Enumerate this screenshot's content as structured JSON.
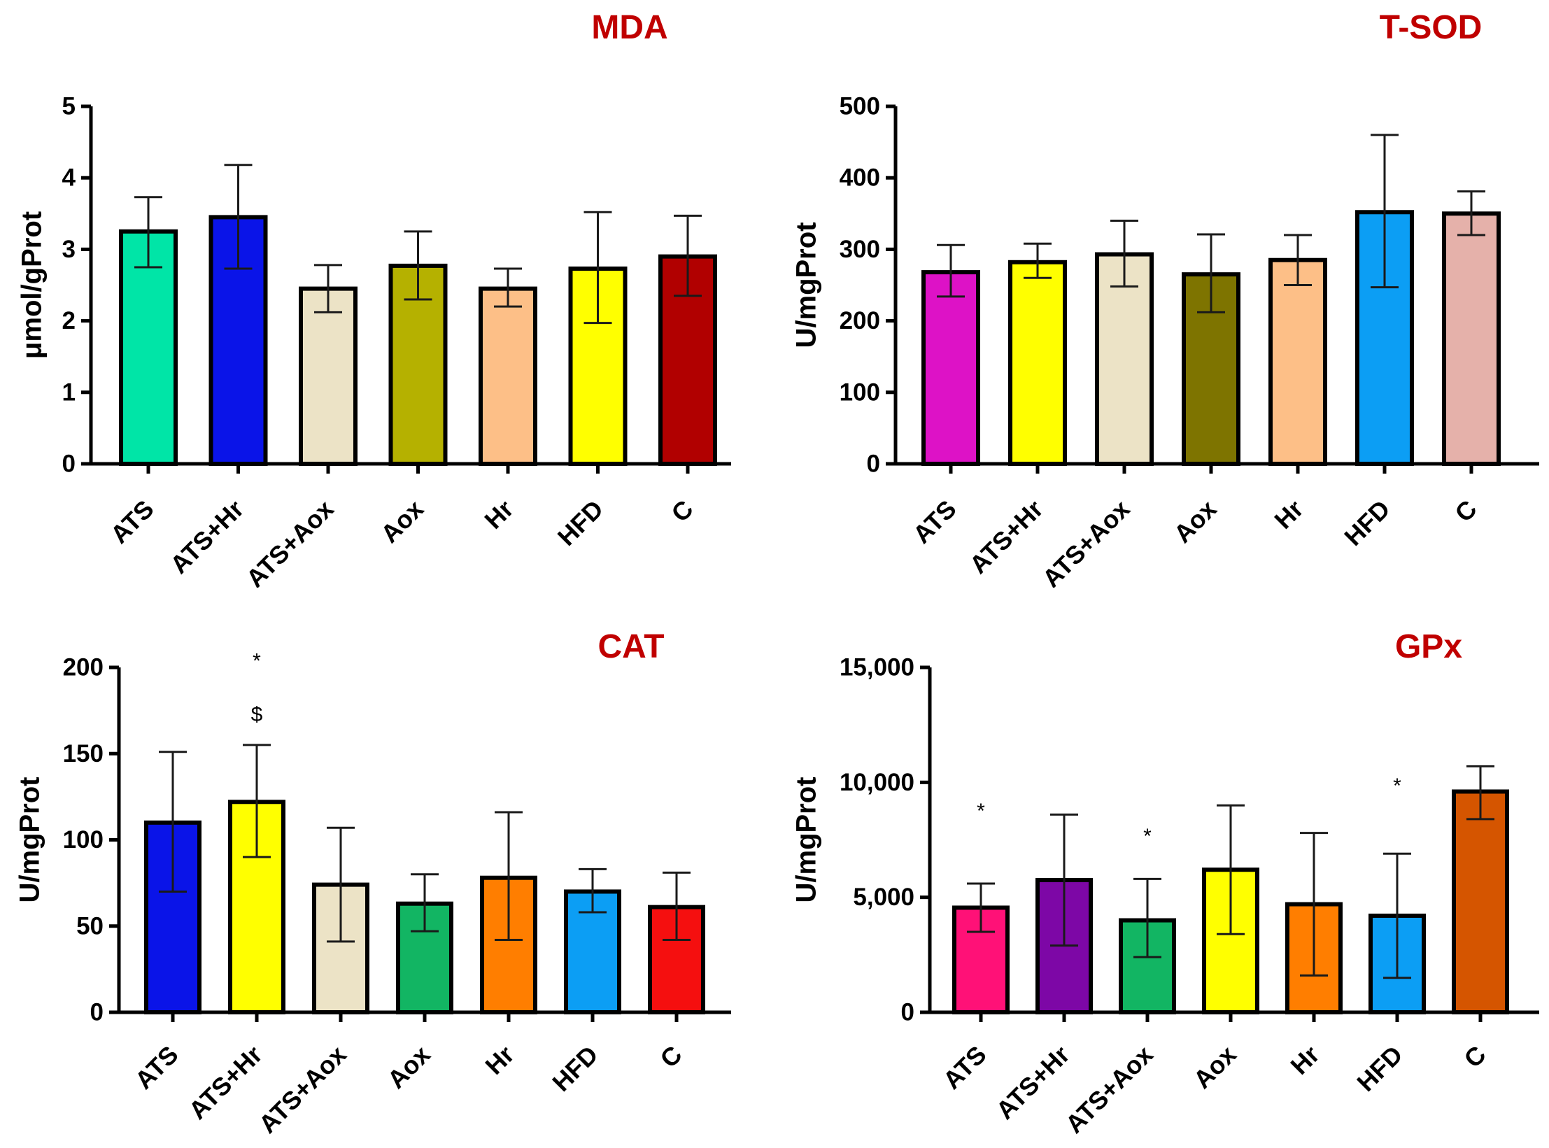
{
  "chart_data": [
    {
      "type": "bar",
      "title": "MDA",
      "ylabel": "μmol/gProt",
      "xlabel": "",
      "ylim": [
        0,
        5
      ],
      "yticks": [
        0,
        1,
        2,
        3,
        4,
        5
      ],
      "ytick_labels": [
        "0",
        "1",
        "2",
        "3",
        "4",
        "5"
      ],
      "categories": [
        "ATS",
        "ATS+Hr",
        "ATS+Aox",
        "Aox",
        "Hr",
        "HFD",
        "C"
      ],
      "values": [
        3.25,
        3.45,
        2.45,
        2.77,
        2.45,
        2.73,
        2.9
      ],
      "err_low": [
        2.75,
        2.73,
        2.12,
        2.3,
        2.2,
        1.97,
        2.35
      ],
      "err_high": [
        3.73,
        4.18,
        2.78,
        3.25,
        2.73,
        3.52,
        3.47
      ],
      "colors": [
        "#00e5a7",
        "#0a14e8",
        "#ece3c6",
        "#b5b100",
        "#fdbf87",
        "#ffff00",
        "#b10000"
      ],
      "annotations": []
    },
    {
      "type": "bar",
      "title": "T-SOD",
      "ylabel": "U/mgProt",
      "xlabel": "",
      "ylim": [
        0,
        500
      ],
      "yticks": [
        0,
        100,
        200,
        300,
        400,
        500
      ],
      "ytick_labels": [
        "0",
        "100",
        "200",
        "300",
        "400",
        "500"
      ],
      "categories": [
        "ATS",
        "ATS+Hr",
        "ATS+Aox",
        "Aox",
        "Hr",
        "HFD",
        "C"
      ],
      "values": [
        268,
        282,
        293,
        265,
        285,
        352,
        350
      ],
      "err_low": [
        234,
        260,
        248,
        212,
        250,
        247,
        320
      ],
      "err_high": [
        306,
        308,
        340,
        321,
        320,
        460,
        381
      ],
      "colors": [
        "#dd12c6",
        "#ffff00",
        "#ece3c6",
        "#7e7400",
        "#fdbf87",
        "#0c9ef4",
        "#e5b1aa"
      ],
      "annotations": []
    },
    {
      "type": "bar",
      "title": "CAT",
      "ylabel": "U/mgProt",
      "xlabel": "",
      "ylim": [
        0,
        200
      ],
      "yticks": [
        0,
        50,
        100,
        150,
        200
      ],
      "ytick_labels": [
        "0",
        "50",
        "100",
        "150",
        "200"
      ],
      "categories": [
        "ATS",
        "ATS+Hr",
        "ATS+Aox",
        "Aox",
        "Hr",
        "HFD",
        "C"
      ],
      "values": [
        110,
        122,
        74,
        63,
        78,
        70,
        61
      ],
      "err_low": [
        70,
        90,
        41,
        47,
        42,
        58,
        42
      ],
      "err_high": [
        151,
        155,
        107,
        80,
        116,
        83,
        81
      ],
      "colors": [
        "#0a14e8",
        "#ffff00",
        "#ece3c6",
        "#12b563",
        "#ff7e00",
        "#0c9ef4",
        "#f50f0f"
      ],
      "annotations": [
        {
          "category": "ATS+Hr",
          "text": "*",
          "value": 203
        },
        {
          "category": "ATS+Hr",
          "text": "$",
          "value": 172
        }
      ]
    },
    {
      "type": "bar",
      "title": "GPx",
      "ylabel": "U/mgProt",
      "xlabel": "",
      "ylim": [
        0,
        15000
      ],
      "yticks": [
        0,
        5000,
        10000,
        15000
      ],
      "ytick_labels": [
        "0",
        "5,000",
        "10,000",
        "15,000"
      ],
      "categories": [
        "ATS",
        "ATS+Hr",
        "ATS+Aox",
        "Aox",
        "Hr",
        "HFD",
        "C"
      ],
      "values": [
        4550,
        5750,
        4000,
        6200,
        4700,
        4200,
        9600
      ],
      "err_low": [
        3500,
        2900,
        2400,
        3400,
        1600,
        1500,
        8400
      ],
      "err_high": [
        5600,
        8600,
        5800,
        9000,
        7800,
        6900,
        10700
      ],
      "colors": [
        "#ff1177",
        "#7d07a6",
        "#12b563",
        "#ffff00",
        "#ff7e00",
        "#0c9ef4",
        "#d55500"
      ],
      "annotations": [
        {
          "category": "ATS",
          "text": "*",
          "value": 8700
        },
        {
          "category": "ATS+Aox",
          "text": "*",
          "value": 7600
        },
        {
          "category": "HFD",
          "text": "*",
          "value": 9800
        }
      ]
    }
  ]
}
